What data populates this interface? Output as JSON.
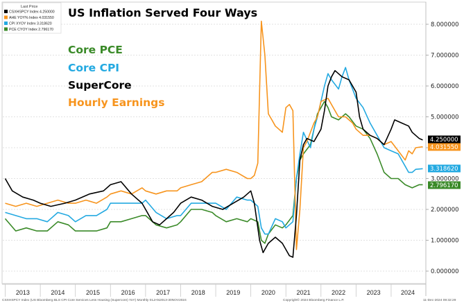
{
  "chart_data": {
    "type": "line",
    "title": "US Inflation Served Four Ways",
    "legend_header": "Last Price",
    "footer_left": "CSXHSPCY Index (US Bloomberg BLS CPI Core Services Less Housing (Supercore) YoY)  Monthly 01JAN2013-30NOV2024",
    "footer_center": "Copyright© 2024 Bloomberg Finance L.P.",
    "footer_right": "11-Dec-2024 09:32:29",
    "ylim": [
      -0.5,
      8.6
    ],
    "yticks": [
      0,
      1,
      2,
      3,
      4,
      5,
      6,
      7,
      8
    ],
    "ytick_labels": [
      "0.000000",
      "1.000000",
      "2.000000",
      "3.000000",
      "4.000000",
      "5.000000",
      "6.000000",
      "7.000000",
      "8.000000"
    ],
    "x_years": [
      "2013",
      "2014",
      "2015",
      "2016",
      "2017",
      "2018",
      "2019",
      "2020",
      "2021",
      "2022",
      "2023",
      "2024"
    ],
    "series": [
      {
        "key": "super",
        "name": "SuperCore",
        "legend_entry": "CSXHSPCY Index  4.250000",
        "last_label": "4.250000",
        "last_value": 4.25,
        "color": "#000000",
        "points": [
          [
            2013.0,
            3.0
          ],
          [
            2013.2,
            2.6
          ],
          [
            2013.5,
            2.4
          ],
          [
            2013.8,
            2.3
          ],
          [
            2014.0,
            2.2
          ],
          [
            2014.3,
            2.1
          ],
          [
            2014.7,
            2.2
          ],
          [
            2015.0,
            2.3
          ],
          [
            2015.4,
            2.5
          ],
          [
            2015.8,
            2.6
          ],
          [
            2016.0,
            2.8
          ],
          [
            2016.3,
            2.9
          ],
          [
            2016.6,
            2.5
          ],
          [
            2016.9,
            2.2
          ],
          [
            2017.0,
            2.0
          ],
          [
            2017.2,
            1.6
          ],
          [
            2017.4,
            1.5
          ],
          [
            2017.6,
            1.7
          ],
          [
            2017.8,
            1.9
          ],
          [
            2018.0,
            2.2
          ],
          [
            2018.3,
            2.4
          ],
          [
            2018.6,
            2.3
          ],
          [
            2018.9,
            2.1
          ],
          [
            2019.2,
            2.0
          ],
          [
            2019.5,
            2.2
          ],
          [
            2019.8,
            2.4
          ],
          [
            2020.0,
            2.6
          ],
          [
            2020.1,
            2.2
          ],
          [
            2020.25,
            1.0
          ],
          [
            2020.35,
            0.6
          ],
          [
            2020.5,
            0.9
          ],
          [
            2020.7,
            1.1
          ],
          [
            2020.9,
            0.9
          ],
          [
            2021.0,
            0.7
          ],
          [
            2021.1,
            0.5
          ],
          [
            2021.2,
            0.45
          ],
          [
            2021.3,
            1.8
          ],
          [
            2021.4,
            3.6
          ],
          [
            2021.5,
            4.1
          ],
          [
            2021.6,
            4.3
          ],
          [
            2021.8,
            4.2
          ],
          [
            2022.0,
            4.6
          ],
          [
            2022.1,
            5.2
          ],
          [
            2022.2,
            6.0
          ],
          [
            2022.3,
            6.3
          ],
          [
            2022.4,
            6.5
          ],
          [
            2022.6,
            6.3
          ],
          [
            2022.8,
            6.2
          ],
          [
            2023.0,
            5.8
          ],
          [
            2023.1,
            5.0
          ],
          [
            2023.2,
            4.6
          ],
          [
            2023.4,
            4.4
          ],
          [
            2023.6,
            4.3
          ],
          [
            2023.8,
            4.1
          ],
          [
            2024.0,
            4.6
          ],
          [
            2024.1,
            4.9
          ],
          [
            2024.3,
            4.8
          ],
          [
            2024.5,
            4.7
          ],
          [
            2024.6,
            4.5
          ],
          [
            2024.8,
            4.3
          ],
          [
            2024.9,
            4.25
          ]
        ]
      },
      {
        "key": "ahe",
        "name": "Hourly Earnings",
        "legend_entry": "AHE YOY% Index  4.031550",
        "last_label": "4.031550",
        "last_value": 4.03,
        "color": "#f7941d",
        "points": [
          [
            2013.0,
            2.2
          ],
          [
            2013.3,
            2.1
          ],
          [
            2013.6,
            2.2
          ],
          [
            2013.9,
            2.1
          ],
          [
            2014.2,
            2.2
          ],
          [
            2014.5,
            2.3
          ],
          [
            2014.8,
            2.2
          ],
          [
            2015.0,
            2.2
          ],
          [
            2015.3,
            2.3
          ],
          [
            2015.6,
            2.2
          ],
          [
            2015.9,
            2.4
          ],
          [
            2016.0,
            2.5
          ],
          [
            2016.3,
            2.6
          ],
          [
            2016.6,
            2.5
          ],
          [
            2016.9,
            2.7
          ],
          [
            2017.0,
            2.6
          ],
          [
            2017.3,
            2.5
          ],
          [
            2017.6,
            2.6
          ],
          [
            2017.9,
            2.6
          ],
          [
            2018.0,
            2.7
          ],
          [
            2018.3,
            2.8
          ],
          [
            2018.6,
            2.9
          ],
          [
            2018.9,
            3.2
          ],
          [
            2019.0,
            3.2
          ],
          [
            2019.3,
            3.3
          ],
          [
            2019.6,
            3.2
          ],
          [
            2019.9,
            3.0
          ],
          [
            2020.0,
            3.0
          ],
          [
            2020.1,
            3.1
          ],
          [
            2020.2,
            3.5
          ],
          [
            2020.3,
            8.1
          ],
          [
            2020.4,
            7.0
          ],
          [
            2020.5,
            5.1
          ],
          [
            2020.6,
            4.9
          ],
          [
            2020.7,
            4.7
          ],
          [
            2020.8,
            4.6
          ],
          [
            2020.9,
            4.5
          ],
          [
            2021.0,
            5.3
          ],
          [
            2021.1,
            5.4
          ],
          [
            2021.2,
            5.2
          ],
          [
            2021.3,
            0.7
          ],
          [
            2021.4,
            2.0
          ],
          [
            2021.5,
            4.0
          ],
          [
            2021.6,
            4.2
          ],
          [
            2021.8,
            4.8
          ],
          [
            2021.9,
            5.0
          ],
          [
            2022.0,
            5.5
          ],
          [
            2022.2,
            5.6
          ],
          [
            2022.4,
            5.2
          ],
          [
            2022.5,
            5.0
          ],
          [
            2022.7,
            5.0
          ],
          [
            2022.9,
            4.8
          ],
          [
            2023.0,
            4.6
          ],
          [
            2023.2,
            4.4
          ],
          [
            2023.4,
            4.4
          ],
          [
            2023.6,
            4.3
          ],
          [
            2023.8,
            4.1
          ],
          [
            2024.0,
            4.2
          ],
          [
            2024.2,
            3.9
          ],
          [
            2024.4,
            3.6
          ],
          [
            2024.5,
            3.9
          ],
          [
            2024.6,
            3.8
          ],
          [
            2024.7,
            4.0
          ],
          [
            2024.9,
            4.03
          ]
        ]
      },
      {
        "key": "cpi",
        "name": "Core CPI",
        "legend_entry": "CPI XYOY Index  3.318620",
        "last_label": "3.318620",
        "last_value": 3.32,
        "color": "#23a9e1",
        "points": [
          [
            2013.0,
            1.9
          ],
          [
            2013.3,
            1.8
          ],
          [
            2013.6,
            1.7
          ],
          [
            2013.9,
            1.7
          ],
          [
            2014.2,
            1.6
          ],
          [
            2014.5,
            1.9
          ],
          [
            2014.8,
            1.8
          ],
          [
            2015.0,
            1.6
          ],
          [
            2015.3,
            1.8
          ],
          [
            2015.6,
            1.8
          ],
          [
            2015.9,
            2.0
          ],
          [
            2016.0,
            2.2
          ],
          [
            2016.3,
            2.2
          ],
          [
            2016.6,
            2.2
          ],
          [
            2016.9,
            2.2
          ],
          [
            2017.0,
            2.3
          ],
          [
            2017.3,
            1.9
          ],
          [
            2017.6,
            1.7
          ],
          [
            2017.9,
            1.8
          ],
          [
            2018.0,
            1.8
          ],
          [
            2018.3,
            2.2
          ],
          [
            2018.6,
            2.2
          ],
          [
            2018.9,
            2.2
          ],
          [
            2019.0,
            2.2
          ],
          [
            2019.3,
            2.0
          ],
          [
            2019.6,
            2.4
          ],
          [
            2019.9,
            2.3
          ],
          [
            2020.0,
            2.3
          ],
          [
            2020.2,
            2.1
          ],
          [
            2020.3,
            1.4
          ],
          [
            2020.4,
            1.2
          ],
          [
            2020.5,
            1.2
          ],
          [
            2020.7,
            1.7
          ],
          [
            2020.9,
            1.6
          ],
          [
            2021.0,
            1.4
          ],
          [
            2021.2,
            1.6
          ],
          [
            2021.3,
            3.0
          ],
          [
            2021.4,
            3.8
          ],
          [
            2021.5,
            4.5
          ],
          [
            2021.7,
            4.0
          ],
          [
            2021.8,
            4.6
          ],
          [
            2021.9,
            5.0
          ],
          [
            2022.0,
            5.5
          ],
          [
            2022.1,
            6.0
          ],
          [
            2022.2,
            6.4
          ],
          [
            2022.3,
            6.2
          ],
          [
            2022.5,
            5.9
          ],
          [
            2022.6,
            6.3
          ],
          [
            2022.7,
            6.6
          ],
          [
            2022.8,
            6.2
          ],
          [
            2023.0,
            5.6
          ],
          [
            2023.2,
            5.3
          ],
          [
            2023.4,
            4.8
          ],
          [
            2023.6,
            4.4
          ],
          [
            2023.8,
            4.0
          ],
          [
            2024.0,
            3.9
          ],
          [
            2024.2,
            3.8
          ],
          [
            2024.4,
            3.4
          ],
          [
            2024.5,
            3.2
          ],
          [
            2024.6,
            3.2
          ],
          [
            2024.7,
            3.3
          ],
          [
            2024.9,
            3.32
          ]
        ]
      },
      {
        "key": "pce",
        "name": "Core PCE",
        "legend_entry": "PCE CYOY Index  2.796170",
        "last_label": "2.796170",
        "last_value": 2.8,
        "color": "#3a8a28",
        "points": [
          [
            2013.0,
            1.7
          ],
          [
            2013.3,
            1.3
          ],
          [
            2013.6,
            1.4
          ],
          [
            2013.9,
            1.3
          ],
          [
            2014.2,
            1.3
          ],
          [
            2014.5,
            1.6
          ],
          [
            2014.8,
            1.5
          ],
          [
            2015.0,
            1.3
          ],
          [
            2015.3,
            1.3
          ],
          [
            2015.6,
            1.3
          ],
          [
            2015.9,
            1.4
          ],
          [
            2016.0,
            1.6
          ],
          [
            2016.3,
            1.6
          ],
          [
            2016.6,
            1.7
          ],
          [
            2016.9,
            1.8
          ],
          [
            2017.0,
            1.8
          ],
          [
            2017.3,
            1.5
          ],
          [
            2017.6,
            1.4
          ],
          [
            2017.9,
            1.5
          ],
          [
            2018.0,
            1.6
          ],
          [
            2018.3,
            2.0
          ],
          [
            2018.6,
            2.0
          ],
          [
            2018.9,
            1.9
          ],
          [
            2019.0,
            1.8
          ],
          [
            2019.3,
            1.6
          ],
          [
            2019.6,
            1.7
          ],
          [
            2019.9,
            1.6
          ],
          [
            2020.0,
            1.7
          ],
          [
            2020.2,
            1.6
          ],
          [
            2020.3,
            1.0
          ],
          [
            2020.4,
            0.9
          ],
          [
            2020.5,
            1.2
          ],
          [
            2020.7,
            1.5
          ],
          [
            2020.9,
            1.4
          ],
          [
            2021.0,
            1.5
          ],
          [
            2021.2,
            1.8
          ],
          [
            2021.3,
            3.0
          ],
          [
            2021.4,
            3.6
          ],
          [
            2021.5,
            3.8
          ],
          [
            2021.7,
            4.1
          ],
          [
            2021.8,
            4.6
          ],
          [
            2021.9,
            5.1
          ],
          [
            2022.0,
            5.3
          ],
          [
            2022.1,
            5.5
          ],
          [
            2022.2,
            5.3
          ],
          [
            2022.3,
            5.0
          ],
          [
            2022.5,
            4.9
          ],
          [
            2022.7,
            5.1
          ],
          [
            2022.8,
            5.0
          ],
          [
            2023.0,
            4.7
          ],
          [
            2023.2,
            4.6
          ],
          [
            2023.4,
            4.3
          ],
          [
            2023.6,
            3.8
          ],
          [
            2023.8,
            3.2
          ],
          [
            2024.0,
            3.0
          ],
          [
            2024.2,
            3.0
          ],
          [
            2024.4,
            2.8
          ],
          [
            2024.6,
            2.7
          ],
          [
            2024.8,
            2.8
          ],
          [
            2024.9,
            2.8
          ]
        ]
      }
    ],
    "title_legend": [
      {
        "label": "Core PCE",
        "color": "#3a8a28"
      },
      {
        "label": "Core CPI",
        "color": "#23a9e1"
      },
      {
        "label": "SuperCore",
        "color": "#000000"
      },
      {
        "label": "Hourly Earnings",
        "color": "#f7941d"
      }
    ]
  }
}
